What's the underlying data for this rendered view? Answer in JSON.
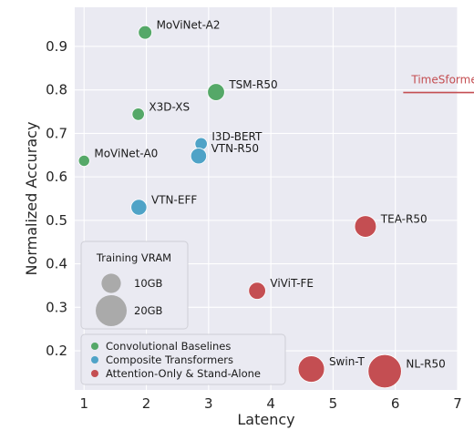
{
  "chart_data": {
    "type": "scatter",
    "xlabel": "Latency",
    "ylabel": "Normalized Accuracy",
    "xlim": [
      0.85,
      7.0
    ],
    "ylim": [
      0.11,
      0.99
    ],
    "xticks": [
      1,
      2,
      3,
      4,
      5,
      6,
      7
    ],
    "yticks": [
      0.2,
      0.3,
      0.4,
      0.5,
      0.6,
      0.7,
      0.8,
      0.9
    ],
    "grid": true,
    "background": "#eaeaf2",
    "series": [
      {
        "name": "Convolutional Baselines",
        "color": "#55a868",
        "points": [
          {
            "label": "MoViNet-A2",
            "x": 1.98,
            "y": 0.932,
            "vram_gb": 5
          },
          {
            "label": "TSM-R50",
            "x": 3.12,
            "y": 0.795,
            "vram_gb": 8
          },
          {
            "label": "X3D-XS",
            "x": 1.87,
            "y": 0.744,
            "vram_gb": 4
          },
          {
            "label": "MoViNet-A0",
            "x": 1.0,
            "y": 0.637,
            "vram_gb": 3
          }
        ]
      },
      {
        "name": "Composite Transformers",
        "color": "#4fa3c7",
        "points": [
          {
            "label": "I3D-BERT",
            "x": 2.88,
            "y": 0.676,
            "vram_gb": 4
          },
          {
            "label": "VTN-R50",
            "x": 2.84,
            "y": 0.648,
            "vram_gb": 7
          },
          {
            "label": "VTN-EFF",
            "x": 1.88,
            "y": 0.53,
            "vram_gb": 7
          }
        ]
      },
      {
        "name": "Attention-Only & Stand-Alone",
        "color": "#c44e52",
        "points": [
          {
            "label": "TEA-R50",
            "x": 5.52,
            "y": 0.486,
            "vram_gb": 12
          },
          {
            "label": "ViViT-FE",
            "x": 3.78,
            "y": 0.338,
            "vram_gb": 8
          },
          {
            "label": "Swin-T",
            "x": 4.65,
            "y": 0.158,
            "vram_gb": 16
          },
          {
            "label": "NL-R50",
            "x": 5.83,
            "y": 0.153,
            "vram_gb": 22
          }
        ]
      }
    ],
    "annotation": {
      "text": "TimeSformer",
      "color": "#c44e52",
      "x": 6.2,
      "y": 0.796
    },
    "size_legend": {
      "title": "Training VRAM",
      "items": [
        {
          "label": "10GB",
          "vram_gb": 10
        },
        {
          "label": "20GB",
          "vram_gb": 20
        }
      ]
    },
    "legend_position": "bottom-left"
  }
}
